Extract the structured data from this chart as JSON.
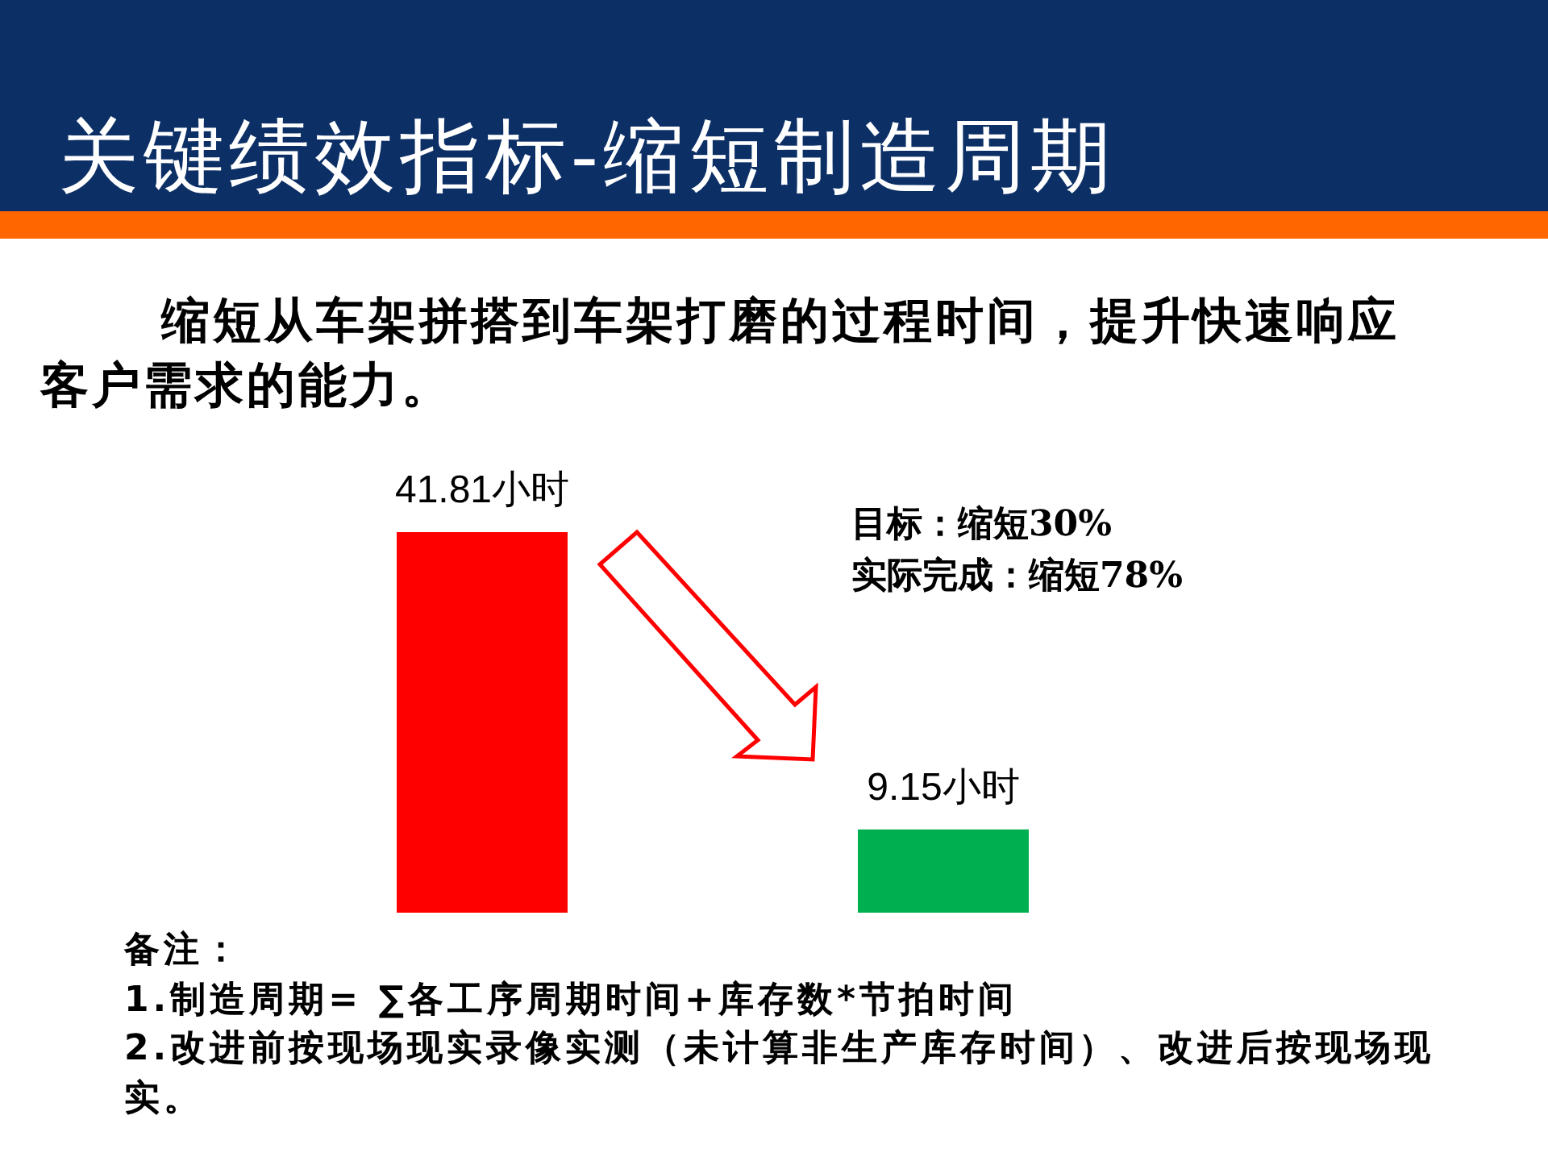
{
  "chart_data": {
    "type": "bar",
    "title": "关键绩效指标-缩短制造周期",
    "subtitle": "缩短从车架拼搭到车架打磨的过程时间，提升快速响应客户需求的能力。",
    "categories": [
      null,
      null
    ],
    "values": [
      41.81,
      9.15
    ],
    "colors": [
      "#ff0000",
      "#00b050"
    ],
    "value_labels": [
      "41.81小时",
      "9.15小时"
    ],
    "annotations": [
      "目标：缩短30%",
      "实际完成：缩短78%",
      "备注：",
      "1.制造周期= ∑各工序周期时间+库存数*节拍时间",
      "2.改进前按现场现实录像实测（未计算非生产库存时间）、改进后按现场现实。"
    ],
    "tick_labels": false
  }
}
